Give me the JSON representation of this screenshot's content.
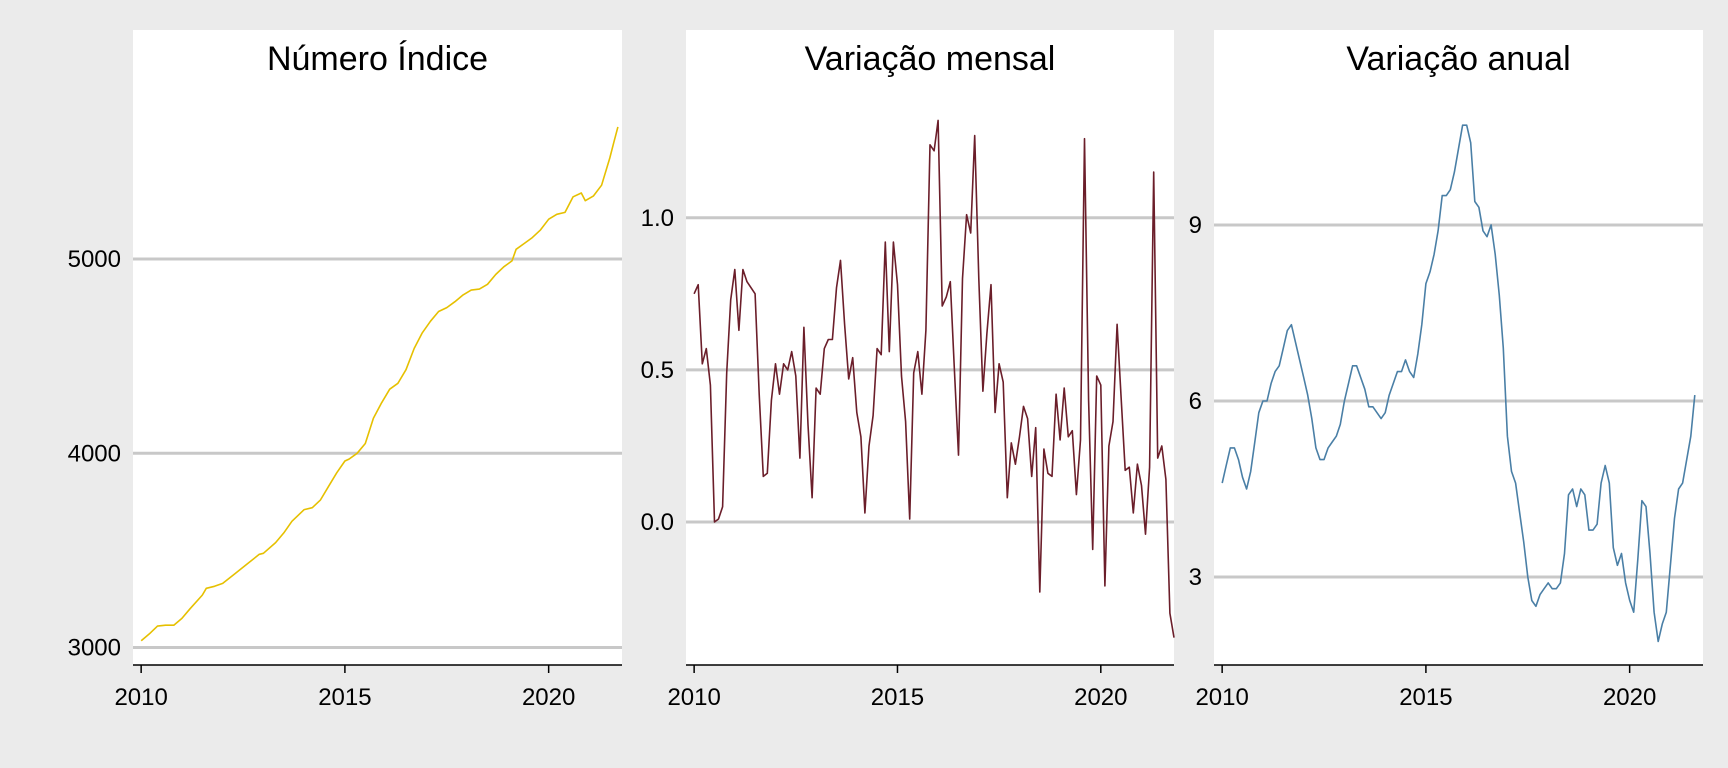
{
  "chart_data": [
    {
      "type": "line",
      "title": "Número Índice",
      "xlabel": "",
      "ylabel": "",
      "xlim": [
        2009.8,
        2021.8
      ],
      "ylim": [
        2910,
        5870
      ],
      "x_ticks": [
        2010,
        2015,
        2020
      ],
      "y_ticks": [
        3000,
        4000,
        5000
      ],
      "y_tick_labels": [
        "3000",
        "4000",
        "5000"
      ],
      "grid": "horizontal",
      "color": "#e6c000",
      "points": [
        [
          2010.0,
          3035
        ],
        [
          2010.2,
          3070
        ],
        [
          2010.4,
          3110
        ],
        [
          2010.6,
          3115
        ],
        [
          2010.8,
          3115
        ],
        [
          2011.0,
          3150
        ],
        [
          2011.2,
          3200
        ],
        [
          2011.5,
          3270
        ],
        [
          2011.6,
          3305
        ],
        [
          2011.8,
          3315
        ],
        [
          2012.0,
          3330
        ],
        [
          2012.3,
          3380
        ],
        [
          2012.6,
          3430
        ],
        [
          2012.9,
          3480
        ],
        [
          2013.0,
          3485
        ],
        [
          2013.3,
          3540
        ],
        [
          2013.5,
          3590
        ],
        [
          2013.7,
          3650
        ],
        [
          2014.0,
          3710
        ],
        [
          2014.2,
          3720
        ],
        [
          2014.4,
          3760
        ],
        [
          2014.6,
          3830
        ],
        [
          2014.8,
          3900
        ],
        [
          2015.0,
          3960
        ],
        [
          2015.1,
          3970
        ],
        [
          2015.3,
          4000
        ],
        [
          2015.5,
          4050
        ],
        [
          2015.7,
          4180
        ],
        [
          2015.9,
          4260
        ],
        [
          2016.1,
          4330
        ],
        [
          2016.3,
          4360
        ],
        [
          2016.5,
          4430
        ],
        [
          2016.7,
          4540
        ],
        [
          2016.9,
          4620
        ],
        [
          2017.1,
          4680
        ],
        [
          2017.3,
          4730
        ],
        [
          2017.5,
          4750
        ],
        [
          2017.7,
          4780
        ],
        [
          2017.9,
          4815
        ],
        [
          2018.1,
          4840
        ],
        [
          2018.3,
          4845
        ],
        [
          2018.5,
          4870
        ],
        [
          2018.7,
          4920
        ],
        [
          2018.9,
          4960
        ],
        [
          2019.1,
          4990
        ],
        [
          2019.2,
          5050
        ],
        [
          2019.4,
          5080
        ],
        [
          2019.6,
          5110
        ],
        [
          2019.8,
          5150
        ],
        [
          2020.0,
          5205
        ],
        [
          2020.2,
          5230
        ],
        [
          2020.4,
          5240
        ],
        [
          2020.6,
          5320
        ],
        [
          2020.8,
          5340
        ],
        [
          2020.9,
          5300
        ],
        [
          2021.1,
          5325
        ],
        [
          2021.3,
          5380
        ],
        [
          2021.5,
          5520
        ],
        [
          2021.6,
          5600
        ],
        [
          2021.7,
          5680
        ]
      ]
    },
    {
      "type": "line",
      "title": "Variação mensal",
      "xlabel": "",
      "ylabel": "",
      "xlim": [
        2009.8,
        2021.8
      ],
      "ylim": [
        -0.47,
        1.42
      ],
      "x_ticks": [
        2010,
        2015,
        2020
      ],
      "y_ticks": [
        0.0,
        0.5,
        1.0
      ],
      "y_tick_labels": [
        "0.0",
        "0.5",
        "1.0"
      ],
      "grid": "horizontal",
      "color": "#6b1e2a",
      "points": [
        [
          2010.0,
          0.75
        ],
        [
          2010.1,
          0.78
        ],
        [
          2010.2,
          0.52
        ],
        [
          2010.3,
          0.57
        ],
        [
          2010.4,
          0.45
        ],
        [
          2010.5,
          0.0
        ],
        [
          2010.6,
          0.01
        ],
        [
          2010.7,
          0.05
        ],
        [
          2010.8,
          0.49
        ],
        [
          2010.9,
          0.73
        ],
        [
          2011.0,
          0.83
        ],
        [
          2011.1,
          0.63
        ],
        [
          2011.2,
          0.83
        ],
        [
          2011.3,
          0.79
        ],
        [
          2011.4,
          0.77
        ],
        [
          2011.5,
          0.75
        ],
        [
          2011.6,
          0.42
        ],
        [
          2011.7,
          0.15
        ],
        [
          2011.8,
          0.16
        ],
        [
          2011.9,
          0.4
        ],
        [
          2012.0,
          0.52
        ],
        [
          2012.1,
          0.42
        ],
        [
          2012.2,
          0.52
        ],
        [
          2012.3,
          0.5
        ],
        [
          2012.4,
          0.56
        ],
        [
          2012.5,
          0.48
        ],
        [
          2012.6,
          0.21
        ],
        [
          2012.7,
          0.64
        ],
        [
          2012.8,
          0.32
        ],
        [
          2012.9,
          0.08
        ],
        [
          2013.0,
          0.44
        ],
        [
          2013.1,
          0.42
        ],
        [
          2013.2,
          0.57
        ],
        [
          2013.3,
          0.6
        ],
        [
          2013.4,
          0.6
        ],
        [
          2013.5,
          0.77
        ],
        [
          2013.6,
          0.86
        ],
        [
          2013.7,
          0.65
        ],
        [
          2013.8,
          0.47
        ],
        [
          2013.9,
          0.54
        ],
        [
          2014.0,
          0.36
        ],
        [
          2014.1,
          0.28
        ],
        [
          2014.2,
          0.03
        ],
        [
          2014.3,
          0.25
        ],
        [
          2014.4,
          0.35
        ],
        [
          2014.5,
          0.57
        ],
        [
          2014.6,
          0.55
        ],
        [
          2014.7,
          0.92
        ],
        [
          2014.8,
          0.56
        ],
        [
          2014.9,
          0.92
        ],
        [
          2015.0,
          0.78
        ],
        [
          2015.1,
          0.48
        ],
        [
          2015.2,
          0.33
        ],
        [
          2015.3,
          0.01
        ],
        [
          2015.4,
          0.49
        ],
        [
          2015.5,
          0.56
        ],
        [
          2015.6,
          0.42
        ],
        [
          2015.7,
          0.63
        ],
        [
          2015.8,
          1.24
        ],
        [
          2015.9,
          1.22
        ],
        [
          2016.0,
          1.32
        ],
        [
          2016.1,
          0.71
        ],
        [
          2016.2,
          0.74
        ],
        [
          2016.3,
          0.79
        ],
        [
          2016.4,
          0.5
        ],
        [
          2016.5,
          0.22
        ],
        [
          2016.6,
          0.8
        ],
        [
          2016.7,
          1.01
        ],
        [
          2016.8,
          0.95
        ],
        [
          2016.9,
          1.27
        ],
        [
          2017.0,
          0.8
        ],
        [
          2017.1,
          0.43
        ],
        [
          2017.2,
          0.62
        ],
        [
          2017.3,
          0.78
        ],
        [
          2017.4,
          0.36
        ],
        [
          2017.5,
          0.52
        ],
        [
          2017.6,
          0.46
        ],
        [
          2017.7,
          0.08
        ],
        [
          2017.8,
          0.26
        ],
        [
          2017.9,
          0.19
        ],
        [
          2018.0,
          0.28
        ],
        [
          2018.1,
          0.38
        ],
        [
          2018.2,
          0.34
        ],
        [
          2018.3,
          0.15
        ],
        [
          2018.4,
          0.31
        ],
        [
          2018.5,
          -0.23
        ],
        [
          2018.6,
          0.24
        ],
        [
          2018.7,
          0.16
        ],
        [
          2018.8,
          0.15
        ],
        [
          2018.9,
          0.42
        ],
        [
          2019.0,
          0.27
        ],
        [
          2019.1,
          0.44
        ],
        [
          2019.2,
          0.28
        ],
        [
          2019.3,
          0.3
        ],
        [
          2019.4,
          0.09
        ],
        [
          2019.5,
          0.27
        ],
        [
          2019.6,
          1.26
        ],
        [
          2019.7,
          0.4
        ],
        [
          2019.8,
          -0.09
        ],
        [
          2019.9,
          0.48
        ],
        [
          2020.0,
          0.45
        ],
        [
          2020.1,
          -0.21
        ],
        [
          2020.2,
          0.25
        ],
        [
          2020.3,
          0.33
        ],
        [
          2020.4,
          0.65
        ],
        [
          2020.5,
          0.41
        ],
        [
          2020.6,
          0.17
        ],
        [
          2020.7,
          0.18
        ],
        [
          2020.8,
          0.03
        ],
        [
          2020.9,
          0.19
        ],
        [
          2021.0,
          0.12
        ],
        [
          2021.1,
          -0.04
        ],
        [
          2021.2,
          0.18
        ],
        [
          2021.3,
          1.15
        ],
        [
          2021.4,
          0.21
        ],
        [
          2021.5,
          0.25
        ],
        [
          2021.6,
          0.14
        ],
        [
          2021.7,
          -0.3
        ],
        [
          2021.8,
          -0.38
        ]
      ]
    },
    {
      "type": "line",
      "title": "Variação anual",
      "xlabel": "",
      "ylabel": "",
      "xlim": [
        2009.8,
        2021.8
      ],
      "ylim": [
        1.5,
        11.3
      ],
      "x_ticks": [
        2010,
        2015,
        2020
      ],
      "y_ticks": [
        3,
        6,
        9
      ],
      "y_tick_labels": [
        "3",
        "6",
        "9"
      ],
      "grid": "horizontal",
      "color": "#4a7fa6",
      "points": [
        [
          2010.0,
          4.6
        ],
        [
          2010.1,
          4.9
        ],
        [
          2010.2,
          5.2
        ],
        [
          2010.3,
          5.2
        ],
        [
          2010.4,
          5.0
        ],
        [
          2010.5,
          4.7
        ],
        [
          2010.6,
          4.5
        ],
        [
          2010.7,
          4.8
        ],
        [
          2010.8,
          5.3
        ],
        [
          2010.9,
          5.8
        ],
        [
          2011.0,
          6.0
        ],
        [
          2011.1,
          6.0
        ],
        [
          2011.2,
          6.3
        ],
        [
          2011.3,
          6.5
        ],
        [
          2011.4,
          6.6
        ],
        [
          2011.5,
          6.9
        ],
        [
          2011.6,
          7.2
        ],
        [
          2011.7,
          7.3
        ],
        [
          2011.8,
          7.0
        ],
        [
          2011.9,
          6.7
        ],
        [
          2012.0,
          6.4
        ],
        [
          2012.1,
          6.1
        ],
        [
          2012.2,
          5.7
        ],
        [
          2012.3,
          5.2
        ],
        [
          2012.4,
          5.0
        ],
        [
          2012.5,
          5.0
        ],
        [
          2012.6,
          5.2
        ],
        [
          2012.7,
          5.3
        ],
        [
          2012.8,
          5.4
        ],
        [
          2012.9,
          5.6
        ],
        [
          2013.0,
          6.0
        ],
        [
          2013.1,
          6.3
        ],
        [
          2013.2,
          6.6
        ],
        [
          2013.3,
          6.6
        ],
        [
          2013.4,
          6.4
        ],
        [
          2013.5,
          6.2
        ],
        [
          2013.6,
          5.9
        ],
        [
          2013.7,
          5.9
        ],
        [
          2013.8,
          5.8
        ],
        [
          2013.9,
          5.7
        ],
        [
          2014.0,
          5.8
        ],
        [
          2014.1,
          6.1
        ],
        [
          2014.2,
          6.3
        ],
        [
          2014.3,
          6.5
        ],
        [
          2014.4,
          6.5
        ],
        [
          2014.5,
          6.7
        ],
        [
          2014.6,
          6.5
        ],
        [
          2014.7,
          6.4
        ],
        [
          2014.8,
          6.8
        ],
        [
          2014.9,
          7.3
        ],
        [
          2015.0,
          8.0
        ],
        [
          2015.1,
          8.2
        ],
        [
          2015.2,
          8.5
        ],
        [
          2015.3,
          8.9
        ],
        [
          2015.4,
          9.5
        ],
        [
          2015.5,
          9.5
        ],
        [
          2015.6,
          9.6
        ],
        [
          2015.7,
          9.9
        ],
        [
          2015.8,
          10.3
        ],
        [
          2015.9,
          10.7
        ],
        [
          2016.0,
          10.7
        ],
        [
          2016.1,
          10.4
        ],
        [
          2016.2,
          9.4
        ],
        [
          2016.3,
          9.3
        ],
        [
          2016.4,
          8.9
        ],
        [
          2016.5,
          8.8
        ],
        [
          2016.6,
          9.0
        ],
        [
          2016.7,
          8.5
        ],
        [
          2016.8,
          7.8
        ],
        [
          2016.9,
          6.9
        ],
        [
          2017.0,
          5.4
        ],
        [
          2017.1,
          4.8
        ],
        [
          2017.2,
          4.6
        ],
        [
          2017.3,
          4.1
        ],
        [
          2017.4,
          3.6
        ],
        [
          2017.5,
          3.0
        ],
        [
          2017.6,
          2.6
        ],
        [
          2017.7,
          2.5
        ],
        [
          2017.8,
          2.7
        ],
        [
          2017.9,
          2.8
        ],
        [
          2018.0,
          2.9
        ],
        [
          2018.1,
          2.8
        ],
        [
          2018.2,
          2.8
        ],
        [
          2018.3,
          2.9
        ],
        [
          2018.4,
          3.4
        ],
        [
          2018.5,
          4.4
        ],
        [
          2018.6,
          4.5
        ],
        [
          2018.7,
          4.2
        ],
        [
          2018.8,
          4.5
        ],
        [
          2018.9,
          4.4
        ],
        [
          2019.0,
          3.8
        ],
        [
          2019.1,
          3.8
        ],
        [
          2019.2,
          3.9
        ],
        [
          2019.3,
          4.6
        ],
        [
          2019.4,
          4.9
        ],
        [
          2019.5,
          4.6
        ],
        [
          2019.6,
          3.5
        ],
        [
          2019.7,
          3.2
        ],
        [
          2019.8,
          3.4
        ],
        [
          2019.9,
          2.9
        ],
        [
          2020.0,
          2.6
        ],
        [
          2020.1,
          2.4
        ],
        [
          2020.2,
          3.3
        ],
        [
          2020.3,
          4.3
        ],
        [
          2020.4,
          4.2
        ],
        [
          2020.5,
          3.4
        ],
        [
          2020.6,
          2.4
        ],
        [
          2020.7,
          1.9
        ],
        [
          2020.8,
          2.2
        ],
        [
          2020.9,
          2.4
        ],
        [
          2021.0,
          3.2
        ],
        [
          2021.1,
          4.0
        ],
        [
          2021.2,
          4.5
        ],
        [
          2021.3,
          4.6
        ],
        [
          2021.4,
          5.0
        ],
        [
          2021.5,
          5.4
        ],
        [
          2021.6,
          6.1
        ]
      ]
    }
  ]
}
